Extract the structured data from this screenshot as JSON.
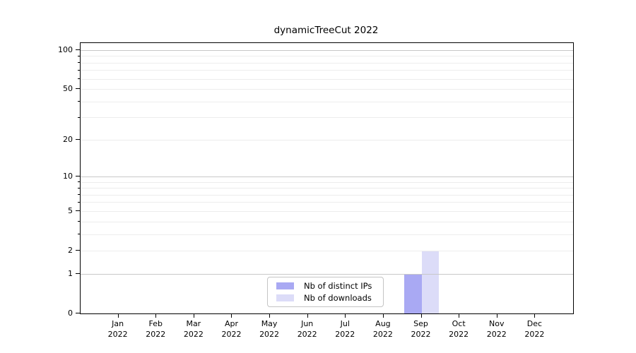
{
  "chart_data": {
    "type": "bar",
    "title": "dynamicTreeCut 2022",
    "year_label": "2022",
    "categories": [
      "Jan",
      "Feb",
      "Mar",
      "Apr",
      "May",
      "Jun",
      "Jul",
      "Aug",
      "Sep",
      "Oct",
      "Nov",
      "Dec"
    ],
    "series": [
      {
        "name": "Nb of distinct IPs",
        "color": "#a9a9f3",
        "values": [
          0,
          0,
          0,
          0,
          0,
          0,
          0,
          0,
          1,
          0,
          0,
          0
        ]
      },
      {
        "name": "Nb of downloads",
        "color": "#dcdcf8",
        "values": [
          0,
          0,
          0,
          0,
          0,
          0,
          0,
          0,
          2,
          0,
          0,
          0
        ]
      }
    ],
    "xlabel": "",
    "ylabel": "",
    "y_axis": {
      "scale": "log10(1+v)",
      "ylim": [
        0,
        101
      ],
      "major_ticks": [
        0,
        1,
        2,
        5,
        10,
        20,
        50,
        100
      ],
      "minor_ticks": [
        3,
        4,
        6,
        7,
        8,
        9,
        30,
        40,
        60,
        70,
        80,
        90
      ],
      "gridlines_dark": [
        1,
        10,
        100
      ],
      "gridlines_light": [
        2,
        3,
        4,
        5,
        6,
        7,
        8,
        9,
        20,
        30,
        40,
        50,
        60,
        70,
        80,
        90
      ]
    },
    "legend": {
      "position": "bottom-center",
      "items": [
        "Nb of distinct IPs",
        "Nb of downloads"
      ]
    },
    "grid": "horizontal",
    "colors": {
      "grid_light": "#ededed",
      "grid_dark": "#c8c8c8",
      "spine": "#000000",
      "text": "#000000"
    }
  }
}
